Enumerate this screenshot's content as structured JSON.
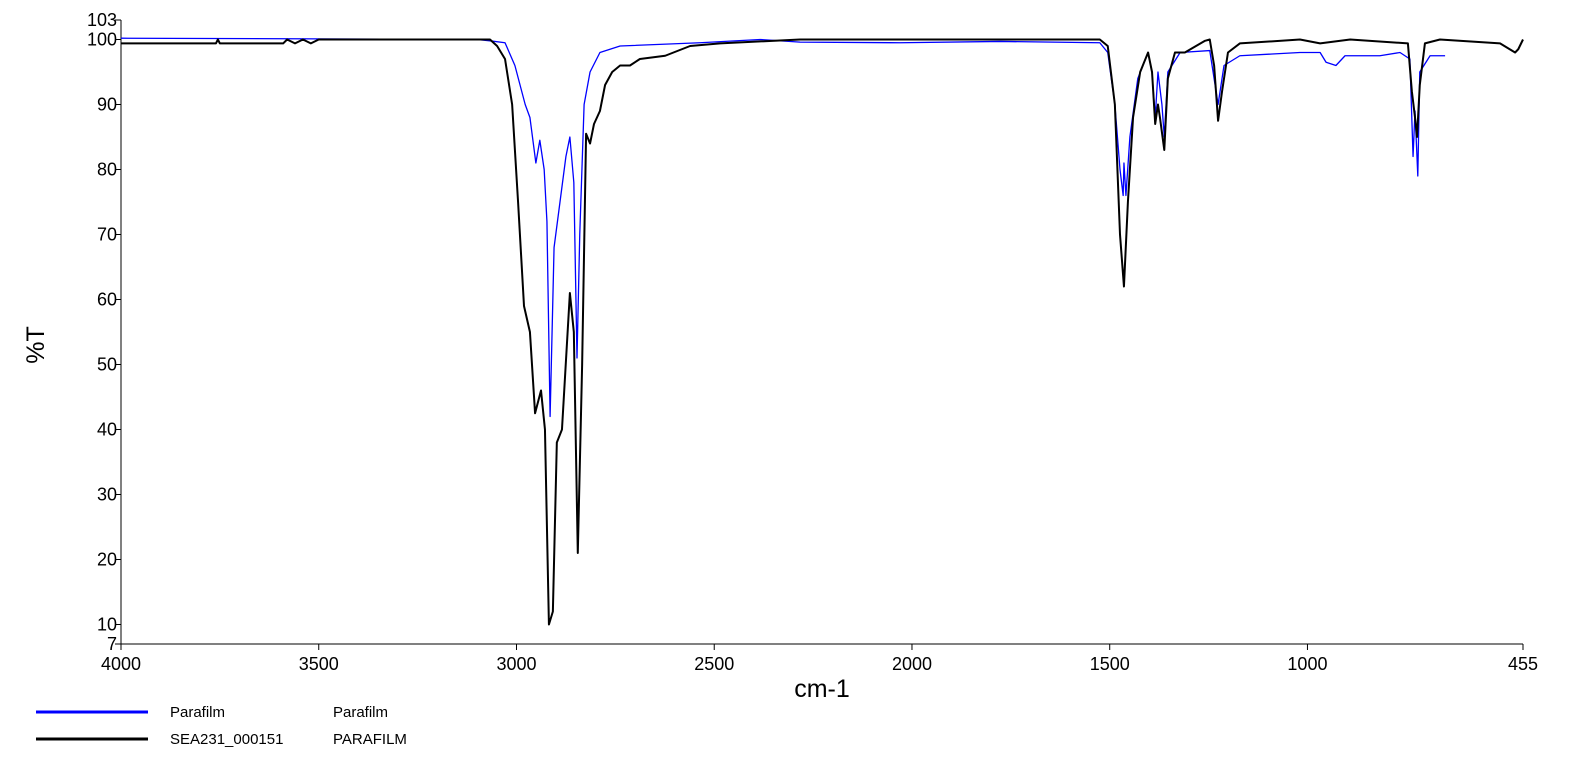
{
  "chart_data": {
    "type": "line",
    "x_label": "cm-1",
    "y_label": "%T",
    "xlim": [
      4000,
      455
    ],
    "ylim": [
      7,
      103
    ],
    "xticks": [
      4000,
      3500,
      3000,
      2500,
      2000,
      1500,
      1000,
      455
    ],
    "yticks": [
      7,
      10,
      20,
      30,
      40,
      50,
      60,
      70,
      80,
      90,
      100,
      103
    ],
    "series": [
      {
        "name": "Parafilm",
        "description": "Parafilm",
        "color": "#0000ff",
        "x": [
          4000,
          3500,
          3100,
          3067,
          3029,
          3004,
          2978,
          2966,
          2951,
          2941,
          2930,
          2923,
          2915,
          2905,
          2890,
          2875,
          2865,
          2855,
          2847,
          2840,
          2829,
          2814,
          2789,
          2738,
          2536,
          2384,
          2283,
          2030,
          1777,
          1525,
          1505,
          1487,
          1474,
          1466,
          1464,
          1459,
          1449,
          1429,
          1403,
          1393,
          1385,
          1378,
          1368,
          1362,
          1353,
          1322,
          1247,
          1226,
          1211,
          1171,
          1019,
          968,
          953,
          928,
          905,
          817,
          766,
          741,
          733,
          728,
          721,
          716,
          690,
          652
        ],
        "values": [
          100.2,
          100.1,
          100,
          99.8,
          99.5,
          96,
          90,
          88,
          81,
          84.5,
          80,
          72,
          42,
          68,
          75,
          82,
          85,
          78,
          51,
          70,
          90,
          95,
          98,
          99,
          99.5,
          100,
          99.6,
          99.5,
          99.7,
          99.5,
          98,
          90,
          80,
          76,
          81,
          76,
          85,
          94,
          98,
          95,
          88,
          95,
          90,
          85,
          95,
          98,
          98.3,
          90,
          96,
          97.5,
          98,
          98,
          96.5,
          96,
          97.5,
          97.5,
          98,
          97,
          82,
          89,
          79,
          95,
          97.5,
          97.5
        ]
      },
      {
        "name": "SEA231_000151",
        "description": "PARAFILM",
        "color": "#000000",
        "x": [
          4000,
          3760,
          3755,
          3750,
          3590,
          3580,
          3560,
          3540,
          3520,
          3500,
          3175,
          3170,
          3067,
          3049,
          3029,
          3011,
          2996,
          2981,
          2966,
          2953,
          2938,
          2928,
          2918,
          2908,
          2898,
          2885,
          2865,
          2855,
          2845,
          2834,
          2824,
          2814,
          2804,
          2789,
          2776,
          2758,
          2738,
          2713,
          2688,
          2624,
          2561,
          2485,
          2283,
          1525,
          1505,
          1487,
          1474,
          1464,
          1454,
          1441,
          1423,
          1403,
          1393,
          1385,
          1378,
          1373,
          1362,
          1353,
          1335,
          1310,
          1259,
          1247,
          1236,
          1226,
          1216,
          1201,
          1171,
          1019,
          968,
          892,
          746,
          736,
          728,
          723,
          716,
          703,
          665,
          513,
          475,
          467,
          455
        ],
        "values": [
          99.4,
          99.4,
          100,
          99.4,
          99.4,
          100,
          99.4,
          100,
          99.4,
          100,
          100,
          100,
          100,
          99,
          97,
          90,
          75,
          59,
          55,
          42.5,
          46,
          40,
          10,
          12,
          38,
          40,
          61,
          55,
          21,
          50,
          85.5,
          84,
          87,
          89,
          93,
          95,
          96,
          96,
          97,
          97.5,
          99,
          99.4,
          100,
          100,
          99,
          90,
          70,
          62,
          75,
          88,
          95,
          98,
          95,
          87,
          90,
          88,
          83,
          94,
          98,
          98,
          99.8,
          100,
          96,
          87.5,
          92,
          98,
          99.4,
          100,
          99.4,
          100,
          99.4,
          92,
          88,
          85,
          93,
          99.4,
          100,
          99.4,
          98,
          98.5,
          100
        ]
      }
    ]
  }
}
